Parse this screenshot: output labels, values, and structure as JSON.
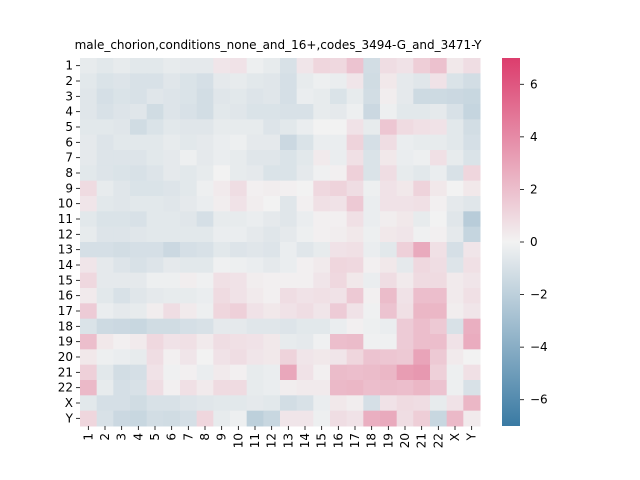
{
  "chart_data": {
    "type": "heatmap",
    "title": "male_chorion,conditions_none_and_16+,codes_3494-G_and_3471-Y",
    "labels": [
      "1",
      "2",
      "3",
      "4",
      "5",
      "6",
      "7",
      "8",
      "9",
      "10",
      "11",
      "12",
      "13",
      "14",
      "15",
      "16",
      "17",
      "18",
      "19",
      "20",
      "21",
      "22",
      "X",
      "Y"
    ],
    "vmin": -7,
    "vmax": 7,
    "colorbar_ticks": [
      -6,
      -4,
      -2,
      0,
      2,
      4,
      6
    ],
    "colormap": {
      "low": "#3a7aa3",
      "mid": "#f2f2f2",
      "high": "#dc3d6d"
    },
    "values": [
      [
        -0.4,
        -0.6,
        -0.4,
        -0.6,
        -0.6,
        -0.4,
        -0.5,
        -0.5,
        0.5,
        0.6,
        -0.2,
        -0.4,
        -1.0,
        0.5,
        1.1,
        1.0,
        1.8,
        -1.2,
        0.8,
        0.6,
        1.4,
        1.9,
        0.4,
        0.8
      ],
      [
        -0.6,
        -0.9,
        -0.8,
        -1.0,
        -1.0,
        -0.7,
        -0.9,
        -1.1,
        -0.5,
        -0.4,
        -0.6,
        -0.7,
        -1.1,
        -0.4,
        -0.2,
        -0.3,
        0.5,
        -1.3,
        0.4,
        -0.5,
        -0.7,
        0.6,
        -0.9,
        -1.2
      ],
      [
        -0.7,
        -1.1,
        -0.9,
        -1.0,
        -0.7,
        -0.8,
        -0.9,
        -1.2,
        -0.7,
        -0.6,
        -0.8,
        -0.7,
        -1.1,
        -0.3,
        -0.4,
        -0.9,
        -0.4,
        -1.2,
        0.2,
        -0.5,
        -1.4,
        -1.4,
        -1.5,
        -1.6
      ],
      [
        -0.7,
        -1.0,
        -0.8,
        -0.7,
        -1.3,
        -0.8,
        -1.0,
        -1.2,
        -0.6,
        -0.7,
        -0.9,
        -0.9,
        -1.0,
        -1.0,
        -0.4,
        -0.5,
        -0.2,
        -1.5,
        -0.2,
        -0.6,
        -0.6,
        -0.5,
        -1.0,
        -1.7
      ],
      [
        -0.6,
        -0.6,
        -0.7,
        -1.3,
        -0.9,
        -0.6,
        -0.7,
        -0.7,
        -0.4,
        -0.4,
        -0.4,
        -0.8,
        -0.6,
        -0.3,
        0.0,
        0.0,
        0.6,
        -0.4,
        1.7,
        0.9,
        0.7,
        0.6,
        -0.6,
        -1.2
      ],
      [
        -0.5,
        -0.8,
        -0.6,
        -0.6,
        -0.6,
        -0.4,
        -0.6,
        -0.5,
        -0.3,
        -0.2,
        -0.5,
        -0.5,
        -1.5,
        -0.9,
        -0.3,
        -0.3,
        1.2,
        -1.1,
        0.8,
        -0.3,
        -0.4,
        -0.4,
        -0.6,
        -1.1
      ],
      [
        -0.5,
        -0.8,
        -0.8,
        -0.8,
        -0.6,
        -0.5,
        -0.2,
        -0.5,
        -0.3,
        -0.4,
        -0.7,
        -0.7,
        -0.9,
        -0.6,
        0.3,
        -0.3,
        0.7,
        -0.9,
        0.4,
        -0.3,
        -0.2,
        0.7,
        -0.4,
        -0.9
      ],
      [
        -0.6,
        -0.8,
        -0.9,
        -1.0,
        -0.8,
        -0.5,
        -0.6,
        -0.4,
        0.0,
        -0.4,
        -0.5,
        -0.9,
        -0.9,
        -0.5,
        -0.1,
        0.1,
        1.3,
        -0.9,
        0.8,
        -0.4,
        -0.6,
        -0.3,
        -1.0,
        1.1
      ],
      [
        0.9,
        -0.4,
        -0.7,
        -0.9,
        -0.9,
        -0.8,
        -0.6,
        -0.2,
        0.3,
        0.8,
        0.1,
        0.2,
        0.1,
        0.0,
        1.0,
        1.2,
        0.8,
        -0.2,
        0.6,
        0.4,
        1.2,
        0.4,
        0.0,
        0.4
      ],
      [
        0.5,
        -0.6,
        -0.7,
        -0.6,
        -0.6,
        -0.7,
        -0.5,
        -0.3,
        0.2,
        0.6,
        0.2,
        0.0,
        -0.7,
        0.1,
        0.7,
        0.6,
        1.6,
        -0.3,
        0.6,
        0.6,
        0.7,
        0.1,
        -0.5,
        -0.7
      ],
      [
        -0.6,
        -0.9,
        -0.9,
        -1.0,
        -0.6,
        -0.6,
        -0.7,
        -1.1,
        -0.4,
        -0.4,
        -0.3,
        -0.5,
        -0.7,
        -0.3,
        0.1,
        0.1,
        0.7,
        -0.3,
        0.2,
        0.4,
        -0.4,
        0.0,
        -0.7,
        -2.2
      ],
      [
        -0.4,
        -0.8,
        -0.8,
        -0.7,
        -0.6,
        -0.6,
        -0.6,
        -0.6,
        -0.3,
        -0.3,
        -0.5,
        -0.7,
        -0.5,
        -0.2,
        0.1,
        0.2,
        0.4,
        -0.2,
        0.4,
        0.5,
        -0.1,
        0.1,
        -0.5,
        -1.7
      ],
      [
        -1.1,
        -1.1,
        -1.2,
        -1.1,
        -1.1,
        -1.5,
        -1.1,
        -1.0,
        -0.6,
        -0.8,
        -0.7,
        -0.8,
        -0.3,
        -0.7,
        -0.4,
        0.6,
        0.7,
        -0.3,
        -0.6,
        1.3,
        2.8,
        0.7,
        -1.1,
        0.5
      ],
      [
        0.5,
        -0.5,
        -0.8,
        -1.0,
        -0.8,
        -0.5,
        -0.6,
        -0.6,
        -0.1,
        -0.2,
        -0.3,
        -0.5,
        -0.3,
        0.1,
        0.3,
        1.1,
        1.0,
        0.1,
        0.4,
        -0.5,
        1.0,
        0.8,
        -0.8,
        0.7
      ],
      [
        1.0,
        -0.5,
        -0.5,
        -0.5,
        -0.2,
        -0.2,
        0.2,
        -0.1,
        0.7,
        0.6,
        0.2,
        0.1,
        0.1,
        0.1,
        0.5,
        1.0,
        0.4,
        -0.3,
        0.8,
        0.3,
        0.9,
        0.9,
        0.3,
        0.5
      ],
      [
        0.3,
        -0.6,
        -1.0,
        -0.7,
        -0.5,
        -0.4,
        -0.4,
        -0.3,
        0.9,
        0.6,
        0.3,
        0.1,
        0.8,
        0.6,
        0.7,
        0.6,
        1.6,
        0.1,
        2.1,
        0.6,
        2.0,
        2.0,
        0.3,
        0.7
      ],
      [
        1.5,
        -0.3,
        -0.5,
        -0.4,
        0.2,
        0.8,
        0.3,
        -0.2,
        1.1,
        1.3,
        0.6,
        0.4,
        0.6,
        0.8,
        0.5,
        1.5,
        0.6,
        -0.1,
        1.8,
        0.7,
        2.3,
        2.3,
        0.2,
        0.5
      ],
      [
        -0.9,
        -1.4,
        -1.5,
        -1.6,
        -1.3,
        -1.3,
        -1.1,
        -1.0,
        -0.5,
        -0.5,
        -0.7,
        -0.7,
        -0.8,
        -0.6,
        -0.6,
        -0.3,
        0.1,
        -0.2,
        -0.3,
        1.5,
        2.0,
        1.6,
        -1.0,
        2.6
      ],
      [
        2.0,
        0.4,
        0.1,
        0.3,
        1.0,
        0.6,
        0.7,
        0.3,
        0.8,
        0.7,
        0.6,
        0.4,
        -0.4,
        -0.5,
        -0.1,
        2.0,
        2.1,
        -0.1,
        -0.1,
        1.5,
        2.0,
        2.0,
        0.6,
        2.7
      ],
      [
        0.4,
        -0.2,
        -0.3,
        -0.4,
        0.8,
        0.1,
        0.5,
        0.0,
        0.6,
        0.8,
        0.5,
        0.4,
        1.2,
        0.5,
        0.4,
        0.5,
        1.1,
        1.8,
        1.7,
        1.6,
        3.0,
        1.6,
        0.3,
        0.0
      ],
      [
        1.3,
        -0.6,
        -1.2,
        -1.1,
        0.6,
        -0.1,
        0.1,
        -0.3,
        0.3,
        0.1,
        -0.4,
        -0.3,
        2.9,
        0.6,
        0.1,
        2.1,
        2.0,
        2.1,
        2.3,
        3.3,
        3.5,
        1.3,
        -0.2,
        0.7
      ],
      [
        2.2,
        -0.4,
        -1.1,
        -1.0,
        0.8,
        0.1,
        0.7,
        0.3,
        0.9,
        0.9,
        -0.4,
        -0.3,
        0.2,
        0.3,
        0.3,
        2.2,
        2.3,
        2.0,
        2.1,
        2.0,
        2.3,
        1.8,
        -0.2,
        -1.0
      ],
      [
        -0.6,
        -1.1,
        -1.1,
        -1.3,
        -1.0,
        -1.0,
        -0.8,
        -0.7,
        -0.6,
        -0.6,
        -0.5,
        -0.6,
        -1.2,
        -1.0,
        -0.3,
        0.4,
        0.2,
        -1.1,
        0.6,
        0.9,
        0.8,
        -0.4,
        0.6,
        2.3
      ],
      [
        1.1,
        -1.0,
        -1.5,
        -1.6,
        -1.2,
        -1.3,
        -1.1,
        1.1,
        -0.4,
        -0.2,
        -2.0,
        -1.6,
        0.5,
        0.5,
        -0.2,
        0.8,
        0.6,
        2.6,
        2.8,
        0.8,
        1.4,
        -1.6,
        2.2,
        0.3
      ]
    ]
  }
}
